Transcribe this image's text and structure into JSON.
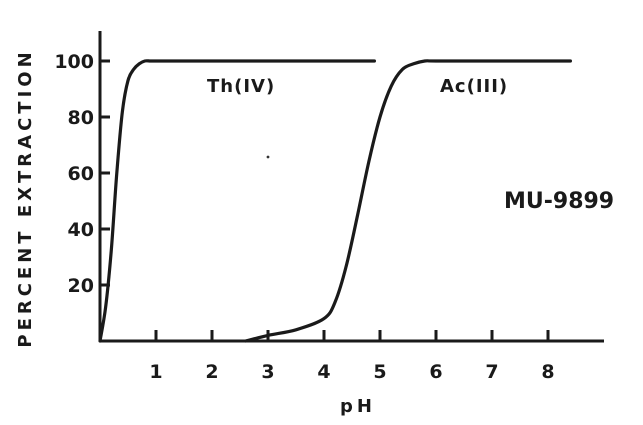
{
  "chart_data": {
    "type": "line",
    "xlabel": "pH",
    "ylabel": "PERCENT EXTRACTION",
    "xlim": [
      0,
      8.8
    ],
    "ylim": [
      0,
      105
    ],
    "x_ticks": [
      "1",
      "2",
      "3",
      "4",
      "5",
      "6",
      "7",
      "8"
    ],
    "y_ticks": [
      "20",
      "40",
      "60",
      "80",
      "100"
    ],
    "grid": false,
    "series": [
      {
        "name": "Th(IV)",
        "x": [
          0.0,
          0.1,
          0.2,
          0.3,
          0.4,
          0.5,
          0.6,
          0.7,
          0.8,
          0.9,
          1.0,
          2.0,
          3.0,
          4.0,
          4.9
        ],
        "y": [
          0,
          12,
          32,
          60,
          82,
          93,
          97,
          99,
          100,
          100,
          100,
          100,
          100,
          100,
          100
        ]
      },
      {
        "name": "Ac(III)",
        "x": [
          2.6,
          3.0,
          3.5,
          4.0,
          4.2,
          4.4,
          4.6,
          4.8,
          5.0,
          5.2,
          5.4,
          5.6,
          5.8,
          6.0,
          7.0,
          8.4
        ],
        "y": [
          0,
          2,
          4,
          8,
          14,
          27,
          45,
          64,
          80,
          91,
          97,
          99,
          100,
          100,
          100,
          100
        ]
      }
    ],
    "annotations": [
      "Th(IV)",
      "Ac(III)"
    ],
    "figure_code": "MU-9899"
  }
}
